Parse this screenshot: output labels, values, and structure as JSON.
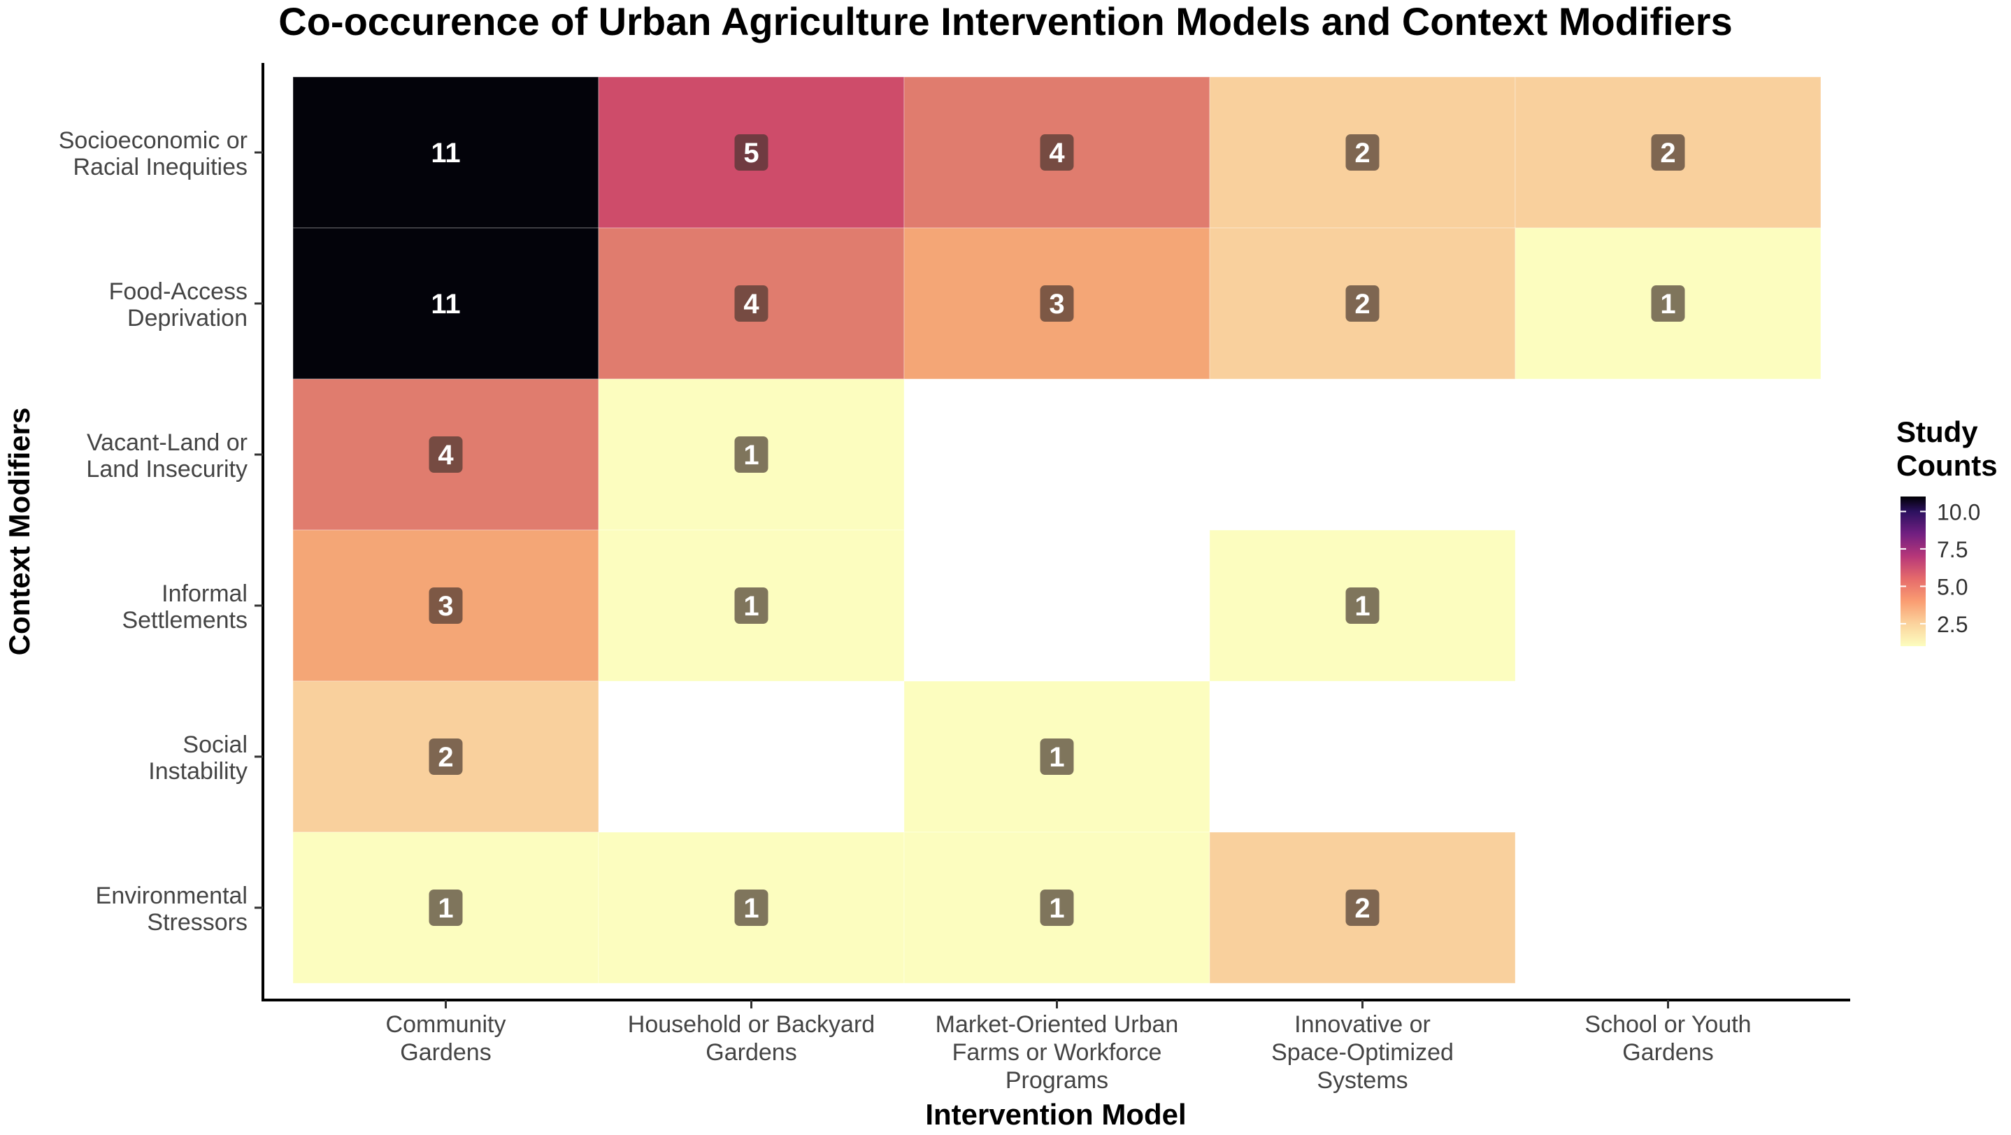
{
  "chart_data": {
    "type": "heatmap",
    "title": "Co-occurence of Urban Agriculture Intervention Models and Context Modifiers",
    "xlabel": "Intervention Model",
    "ylabel": "Context Modifiers",
    "x_categories": [
      [
        "Community",
        "Gardens"
      ],
      [
        "Household or Backyard",
        "Gardens"
      ],
      [
        "Market-Oriented Urban",
        "Farms or Workforce",
        "Programs"
      ],
      [
        "Innovative or",
        "Space-Optimized",
        "Systems"
      ],
      [
        "School or Youth",
        "Gardens"
      ]
    ],
    "y_categories": [
      [
        "Socioeconomic or",
        "Racial Inequities"
      ],
      [
        "Food-Access",
        "Deprivation"
      ],
      [
        "Vacant-Land or",
        "Land Insecurity"
      ],
      [
        "Informal",
        "Settlements"
      ],
      [
        "Social",
        "Instability"
      ],
      [
        "Environmental",
        "Stressors"
      ]
    ],
    "values": [
      [
        11,
        5,
        4,
        2,
        2
      ],
      [
        11,
        4,
        3,
        2,
        1
      ],
      [
        4,
        1,
        null,
        null,
        null
      ],
      [
        3,
        1,
        null,
        1,
        null
      ],
      [
        2,
        null,
        1,
        null,
        null
      ],
      [
        1,
        1,
        1,
        2,
        null
      ]
    ],
    "colorscale": "magma (reversed)",
    "value_range": [
      1,
      11
    ],
    "legend": {
      "title_lines": [
        "Study",
        "Counts"
      ],
      "ticks": [
        10,
        7.5,
        5,
        2.5
      ],
      "tick_labels": [
        "10.0",
        "7.5",
        "5.0",
        "2.5"
      ],
      "position": "right"
    },
    "grid": false
  }
}
